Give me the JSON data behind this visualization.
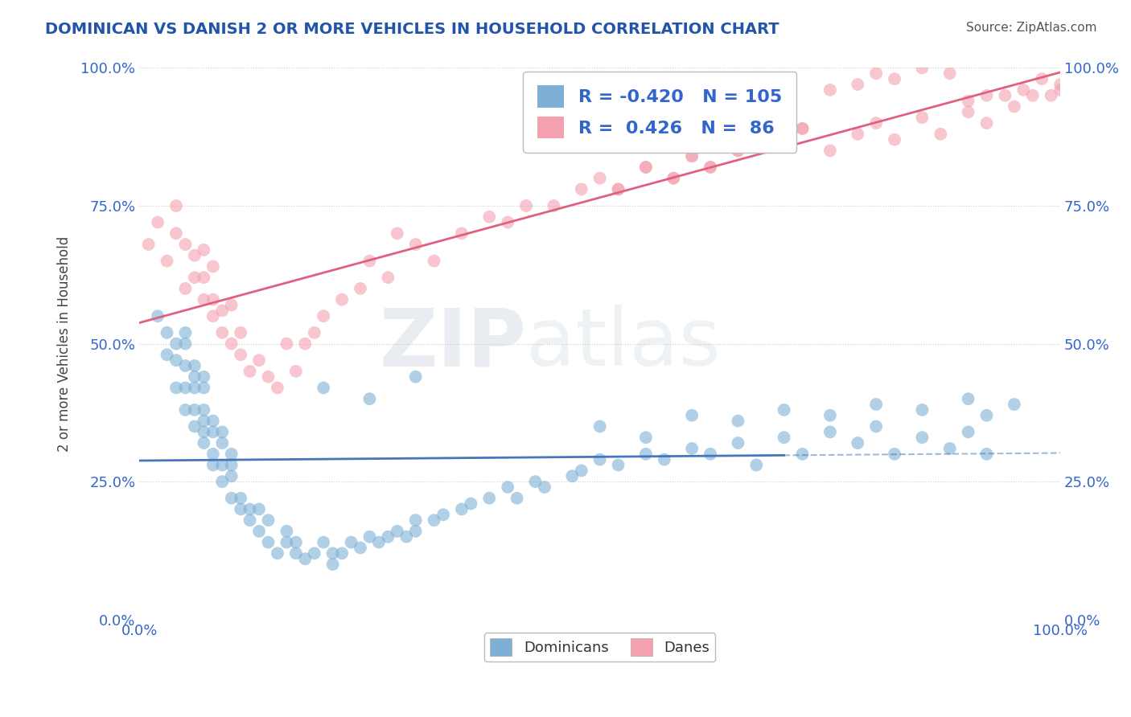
{
  "title": "DOMINICAN VS DANISH 2 OR MORE VEHICLES IN HOUSEHOLD CORRELATION CHART",
  "source_text": "Source: ZipAtlas.com",
  "ylabel": "2 or more Vehicles in Household",
  "ytick_labels": [
    "0.0%",
    "25.0%",
    "50.0%",
    "75.0%",
    "100.0%"
  ],
  "ytick_values": [
    0,
    25,
    50,
    75,
    100
  ],
  "xlim": [
    0,
    100
  ],
  "ylim": [
    0,
    100
  ],
  "watermark_zip": "ZIP",
  "watermark_atlas": "atlas",
  "legend_blue_r": "-0.420",
  "legend_blue_n": "105",
  "legend_pink_r": "0.426",
  "legend_pink_n": "86",
  "blue_color": "#7EB0D5",
  "pink_color": "#F4A0B0",
  "blue_line_color": "#4477BB",
  "pink_line_color": "#E06080",
  "title_color": "#2255AA",
  "legend_r_color": "#3366CC",
  "background_color": "#FFFFFF",
  "grid_color": "#CCCCCC",
  "blue_scatter_x": [
    2,
    3,
    3,
    4,
    4,
    4,
    5,
    5,
    5,
    5,
    5,
    6,
    6,
    6,
    6,
    6,
    7,
    7,
    7,
    7,
    7,
    7,
    8,
    8,
    8,
    8,
    9,
    9,
    9,
    9,
    10,
    10,
    10,
    10,
    11,
    11,
    12,
    12,
    13,
    13,
    14,
    14,
    15,
    16,
    16,
    17,
    17,
    18,
    19,
    20,
    21,
    21,
    22,
    23,
    24,
    25,
    26,
    27,
    28,
    29,
    30,
    30,
    32,
    33,
    35,
    36,
    38,
    40,
    41,
    43,
    44,
    47,
    48,
    50,
    52,
    55,
    57,
    60,
    62,
    65,
    67,
    70,
    72,
    75,
    78,
    80,
    82,
    85,
    88,
    90,
    92,
    50,
    55,
    60,
    65,
    70,
    75,
    80,
    85,
    90,
    92,
    95,
    20,
    25,
    30
  ],
  "blue_scatter_y": [
    55,
    48,
    52,
    42,
    47,
    50,
    38,
    42,
    46,
    50,
    52,
    35,
    38,
    42,
    44,
    46,
    32,
    34,
    36,
    38,
    42,
    44,
    28,
    30,
    34,
    36,
    25,
    28,
    32,
    34,
    22,
    26,
    28,
    30,
    20,
    22,
    18,
    20,
    16,
    20,
    14,
    18,
    12,
    14,
    16,
    12,
    14,
    11,
    12,
    14,
    10,
    12,
    12,
    14,
    13,
    15,
    14,
    15,
    16,
    15,
    18,
    16,
    18,
    19,
    20,
    21,
    22,
    24,
    22,
    25,
    24,
    26,
    27,
    29,
    28,
    30,
    29,
    31,
    30,
    32,
    28,
    33,
    30,
    34,
    32,
    35,
    30,
    33,
    31,
    34,
    30,
    35,
    33,
    37,
    36,
    38,
    37,
    39,
    38,
    40,
    37,
    39,
    42,
    40,
    44
  ],
  "pink_scatter_x": [
    1,
    2,
    3,
    4,
    4,
    5,
    5,
    6,
    6,
    7,
    7,
    7,
    8,
    8,
    8,
    9,
    9,
    10,
    10,
    11,
    11,
    12,
    13,
    14,
    15,
    16,
    17,
    18,
    19,
    20,
    22,
    24,
    25,
    27,
    28,
    30,
    32,
    35,
    38,
    40,
    42,
    45,
    48,
    50,
    52,
    55,
    58,
    60,
    62,
    65,
    68,
    70,
    72,
    75,
    78,
    80,
    82,
    85,
    87,
    90,
    92,
    95,
    97,
    99,
    100,
    100,
    98,
    96,
    94,
    92,
    90,
    88,
    85,
    82,
    80,
    78,
    75,
    72,
    70,
    68,
    65,
    62,
    60,
    58,
    55,
    52
  ],
  "pink_scatter_y": [
    68,
    72,
    65,
    70,
    75,
    60,
    68,
    62,
    66,
    58,
    62,
    67,
    55,
    58,
    64,
    52,
    56,
    50,
    57,
    48,
    52,
    45,
    47,
    44,
    42,
    50,
    45,
    50,
    52,
    55,
    58,
    60,
    65,
    62,
    70,
    68,
    65,
    70,
    73,
    72,
    75,
    75,
    78,
    80,
    78,
    82,
    80,
    84,
    82,
    85,
    88,
    86,
    89,
    85,
    88,
    90,
    87,
    91,
    88,
    92,
    90,
    93,
    95,
    95,
    97,
    96,
    98,
    96,
    95,
    95,
    94,
    99,
    100,
    98,
    99,
    97,
    96,
    89,
    86,
    88,
    85,
    82,
    84,
    80,
    82,
    78
  ]
}
